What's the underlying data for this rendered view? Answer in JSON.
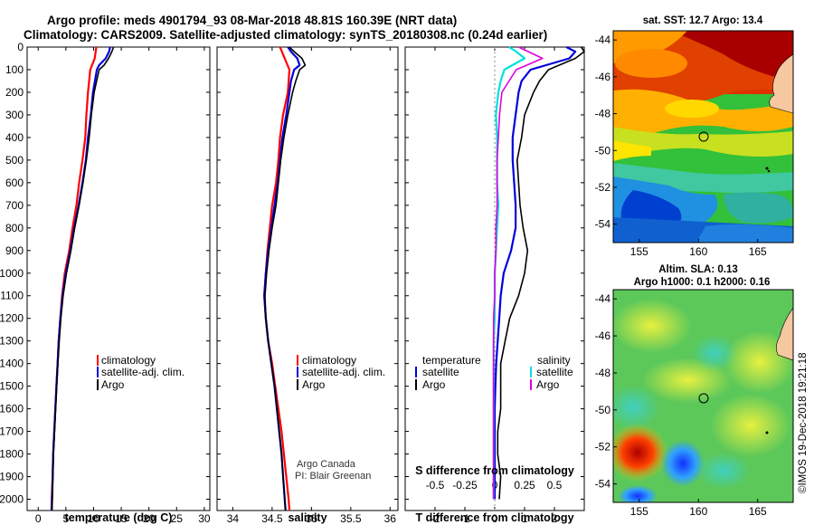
{
  "title": {
    "line1": "Argo profile: meds 4901794_93 08-Mar-2018 48.81S 160.39E (NRT data)",
    "line2": "Climatology: CARS2009. Satellite-adjusted climatology: synTS_20180308.nc (0.24d earlier)"
  },
  "credit": {
    "line1": "Argo Canada",
    "line2": "PI: Blair Greenan"
  },
  "watermark": "©IMOS 19-Dec-2018 19:21:18",
  "colors": {
    "climatology": "#ff0000",
    "satellite": "#0000dd",
    "argo": "#000000",
    "salinity_satellite": "#00e0e0",
    "salinity_argo": "#e000e0",
    "map_marker": "#000000"
  },
  "chart_data": [
    {
      "type": "line",
      "panel": "temperature",
      "xlabel": "temperature (deg C)",
      "xlim": [
        -2,
        31
      ],
      "xticks": [
        0,
        5,
        10,
        15,
        20,
        25,
        30
      ],
      "ylim": [
        2050,
        0
      ],
      "yticks": [
        0,
        100,
        200,
        300,
        400,
        500,
        600,
        700,
        800,
        900,
        1000,
        1100,
        1200,
        1300,
        1400,
        1500,
        1600,
        1700,
        1800,
        1900,
        2000
      ],
      "legend": {
        "placement": "center-right",
        "entries": [
          "climatology",
          "satellite-adj. clim.",
          "Argo"
        ]
      },
      "series": [
        {
          "name": "climatology",
          "color": "#ff0000",
          "depth": [
            0,
            50,
            100,
            200,
            300,
            400,
            500,
            600,
            700,
            800,
            900,
            1000,
            1100,
            1200,
            1300,
            1400,
            1500,
            1600,
            1700,
            1800,
            1900,
            2000,
            2050
          ],
          "values": [
            10.5,
            10.2,
            9.4,
            9.0,
            8.7,
            8.5,
            8.0,
            7.4,
            6.9,
            6.2,
            5.6,
            4.8,
            4.3,
            4.0,
            3.7,
            3.5,
            3.3,
            3.1,
            2.9,
            2.7,
            2.6,
            2.45,
            2.4
          ]
        },
        {
          "name": "satellite-adj. clim.",
          "color": "#0000dd",
          "depth": [
            0,
            20,
            50,
            80,
            100,
            200,
            300,
            400,
            500,
            600,
            700,
            800,
            900,
            1000,
            1100,
            1200,
            1300,
            1400,
            1500,
            1600,
            1700,
            1800,
            1900,
            2000,
            2050
          ],
          "values": [
            13.0,
            12.8,
            12.2,
            11.0,
            10.6,
            9.9,
            9.5,
            9.0,
            8.6,
            8.0,
            7.3,
            6.5,
            5.8,
            5.0,
            4.4,
            4.0,
            3.7,
            3.5,
            3.3,
            3.1,
            2.9,
            2.7,
            2.6,
            2.5,
            2.45
          ]
        },
        {
          "name": "Argo",
          "color": "#000000",
          "depth": [
            0,
            20,
            50,
            80,
            100,
            200,
            300,
            400,
            500,
            600,
            700,
            800,
            900,
            1000,
            1100,
            1200,
            1300,
            1400,
            1500,
            1600,
            1700,
            1800,
            1900,
            2000,
            2050
          ],
          "values": [
            13.6,
            13.3,
            12.7,
            11.9,
            11.0,
            10.1,
            9.6,
            9.2,
            8.7,
            8.1,
            7.4,
            6.6,
            5.9,
            5.1,
            4.5,
            4.1,
            3.8,
            3.55,
            3.35,
            3.15,
            2.95,
            2.75,
            2.65,
            2.55,
            2.5
          ]
        }
      ]
    },
    {
      "type": "line",
      "panel": "salinity",
      "xlabel": "salinity",
      "xlim": [
        33.8,
        36.1
      ],
      "xticks": [
        34,
        34.5,
        35,
        35.5,
        36
      ],
      "ylim": [
        2050,
        0
      ],
      "legend": {
        "placement": "center-right",
        "entries": [
          "climatology",
          "satellite-adj. clim.",
          "Argo"
        ]
      },
      "series": [
        {
          "name": "climatology",
          "color": "#ff0000",
          "depth": [
            0,
            50,
            100,
            200,
            300,
            400,
            500,
            600,
            700,
            800,
            900,
            1000,
            1100,
            1200,
            1300,
            1400,
            1500,
            1600,
            1700,
            1800,
            1900,
            2000,
            2050
          ],
          "values": [
            34.6,
            34.66,
            34.72,
            34.7,
            34.64,
            34.6,
            34.58,
            34.55,
            34.5,
            34.47,
            34.44,
            34.42,
            34.4,
            34.42,
            34.45,
            34.5,
            34.54,
            34.58,
            34.62,
            34.65,
            34.68,
            34.71,
            34.72
          ]
        },
        {
          "name": "satellite-adj. clim.",
          "color": "#0000dd",
          "depth": [
            0,
            20,
            50,
            80,
            100,
            150,
            200,
            300,
            400,
            500,
            600,
            700,
            800,
            900,
            1000,
            1100,
            1200,
            1300,
            1400,
            1500,
            1600,
            1700,
            1800,
            1900,
            2000,
            2050
          ],
          "values": [
            34.7,
            34.74,
            34.82,
            34.85,
            34.78,
            34.74,
            34.72,
            34.68,
            34.63,
            34.6,
            34.57,
            34.53,
            34.49,
            34.45,
            34.42,
            34.4,
            34.42,
            34.45,
            34.49,
            34.53,
            34.56,
            34.59,
            34.62,
            34.64,
            34.66,
            34.67
          ]
        },
        {
          "name": "Argo",
          "color": "#000000",
          "depth": [
            0,
            20,
            50,
            80,
            100,
            150,
            200,
            300,
            400,
            500,
            600,
            700,
            800,
            900,
            1000,
            1100,
            1200,
            1300,
            1400,
            1500,
            1600,
            1700,
            1800,
            1900,
            2000,
            2050
          ],
          "values": [
            34.72,
            34.78,
            34.88,
            34.92,
            34.85,
            34.8,
            34.76,
            34.7,
            34.65,
            34.61,
            34.58,
            34.55,
            34.5,
            34.46,
            34.43,
            34.41,
            34.42,
            34.45,
            34.49,
            34.53,
            34.56,
            34.59,
            34.62,
            34.64,
            34.66,
            34.67
          ]
        }
      ]
    },
    {
      "type": "line",
      "panel": "difference",
      "xlabel": "T difference from climatology",
      "xlabel_top": "S difference from climatology",
      "xlim": [
        -3,
        3
      ],
      "xticks": [
        -2,
        -1,
        0,
        1,
        2
      ],
      "xticks_top": [
        "-0.5",
        "-0.25",
        "0",
        "0.25",
        "0.5"
      ],
      "ylim": [
        2050,
        0
      ],
      "legend": {
        "placement": "center",
        "temperature_heading": "temperature",
        "salinity_heading": "salinity",
        "temperature_entries": [
          "satellite",
          "Argo"
        ],
        "salinity_entries": [
          "satellite",
          "Argo"
        ]
      },
      "series": [
        {
          "name": "temperature satellite",
          "color": "#0000dd",
          "depth": [
            0,
            20,
            50,
            100,
            150,
            200,
            300,
            400,
            500,
            600,
            700,
            800,
            900,
            1000,
            1100,
            1200,
            1300,
            1400,
            1500,
            1600,
            1700,
            1800,
            1900,
            2000
          ],
          "values": [
            2.4,
            2.7,
            2.5,
            1.2,
            0.9,
            0.8,
            0.7,
            0.6,
            0.6,
            0.65,
            0.7,
            0.7,
            0.55,
            0.3,
            0.2,
            0.15,
            0.1,
            0.05,
            0.02,
            0.0,
            0.0,
            0.0,
            0.0,
            0.0
          ]
        },
        {
          "name": "temperature Argo",
          "color": "#000000",
          "depth": [
            0,
            20,
            50,
            100,
            150,
            200,
            300,
            400,
            500,
            600,
            700,
            800,
            900,
            1000,
            1100,
            1200,
            1300,
            1400,
            1500,
            1600,
            1700,
            1800,
            1900,
            2000
          ],
          "values": [
            2.9,
            3.0,
            2.7,
            1.8,
            1.5,
            1.3,
            1.0,
            0.9,
            0.75,
            0.8,
            0.85,
            0.95,
            1.1,
            1.0,
            0.8,
            0.5,
            0.35,
            0.2,
            0.2,
            0.2,
            0.1,
            0.1,
            0.2,
            0.15
          ]
        },
        {
          "name": "salinity satellite",
          "color": "#00e0e0",
          "depth": [
            0,
            20,
            50,
            100,
            150,
            200,
            300,
            400,
            500,
            600,
            700,
            800,
            900,
            1000,
            1100,
            1200,
            1300,
            1400,
            1500,
            1600,
            1700,
            1800,
            1900,
            2000
          ],
          "values": [
            0.12,
            0.18,
            0.25,
            0.08,
            0.05,
            0.03,
            0.01,
            0.02,
            0.02,
            0.02,
            0.03,
            0.02,
            0.01,
            0.0,
            0.0,
            0.0,
            -0.01,
            -0.01,
            -0.01,
            -0.01,
            -0.01,
            -0.01,
            -0.01,
            -0.01
          ]
        },
        {
          "name": "salinity Argo",
          "color": "#e000e0",
          "depth": [
            0,
            20,
            50,
            100,
            150,
            200,
            300,
            400,
            500,
            600,
            700,
            800,
            900,
            1000,
            1100,
            1200,
            1300,
            1400,
            1500,
            1600,
            1700,
            1800,
            1900,
            2000
          ],
          "values": [
            0.2,
            0.28,
            0.4,
            0.18,
            0.12,
            0.06,
            0.04,
            0.03,
            0.02,
            0.02,
            0.02,
            0.01,
            0.01,
            0.0,
            0.0,
            -0.01,
            -0.01,
            -0.01,
            -0.01,
            -0.01,
            -0.01,
            -0.01,
            -0.01,
            -0.01
          ]
        }
      ]
    },
    {
      "type": "heatmap",
      "panel": "sst_map",
      "title": "sat. SST: 12.7 Argo: 13.4",
      "xticks": [
        155,
        160,
        165
      ],
      "yticks": [
        -44,
        -46,
        -48,
        -50,
        -52,
        -54
      ],
      "xlim": [
        152.8,
        168
      ],
      "ylim": [
        -55,
        -43.5
      ],
      "marker": {
        "lon": 160.39,
        "lat": -48.81
      }
    },
    {
      "type": "heatmap",
      "panel": "sla_map",
      "title": "Altim. SLA: 0.13",
      "subtitle": "Argo h1000: 0.1 h2000: 0.16",
      "xticks": [
        155,
        160,
        165
      ],
      "yticks": [
        -44,
        -46,
        -48,
        -50,
        -52,
        -54
      ],
      "xlim": [
        152.8,
        168
      ],
      "ylim": [
        -55,
        -43.5
      ],
      "marker": {
        "lon": 160.39,
        "lat": -48.81
      }
    }
  ]
}
